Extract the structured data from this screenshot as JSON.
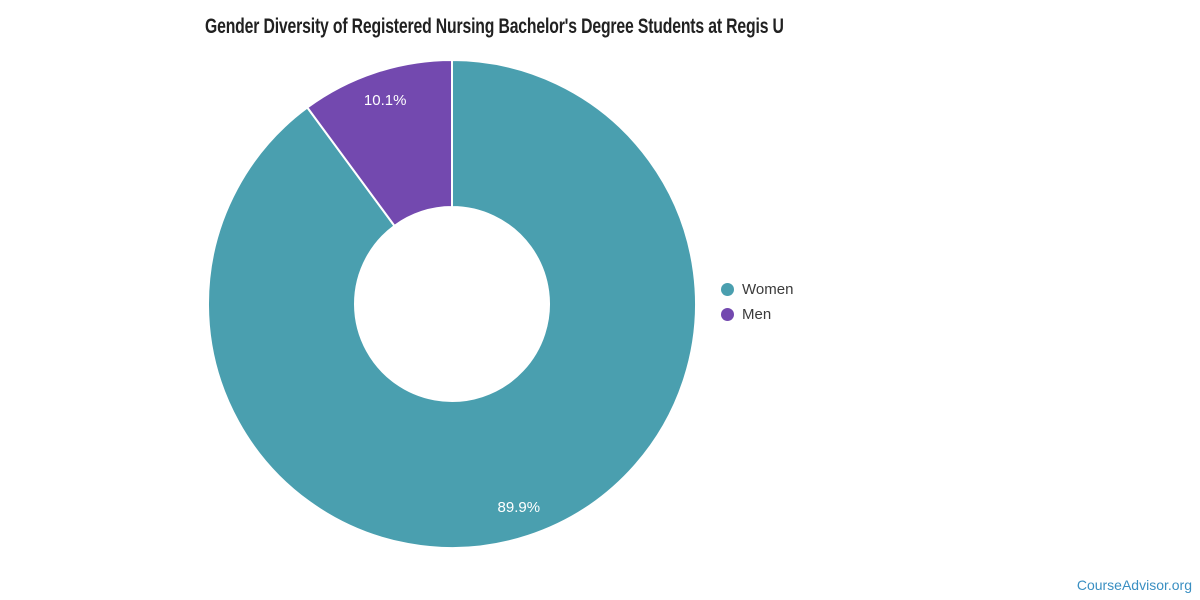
{
  "page": {
    "background_color": "#ffffff"
  },
  "chart_data": {
    "type": "pie",
    "donut": true,
    "title": "Gender Diversity of Registered Nursing Bachelor's Degree Students at Regis U",
    "title_color": "#212121",
    "start_angle_deg": 0,
    "direction": "clockwise",
    "series": [
      {
        "name": "Women",
        "value": 89.9,
        "label": "89.9%",
        "color": "#4A9FAF"
      },
      {
        "name": "Men",
        "value": 10.1,
        "label": "10.1%",
        "color": "#7349AF"
      }
    ],
    "slice_label_color": "#ffffff",
    "slice_separator_color": "#ffffff",
    "legend_position": "right"
  },
  "attribution": {
    "label": "CourseAdvisor.org",
    "color": "#3A8FC2"
  }
}
